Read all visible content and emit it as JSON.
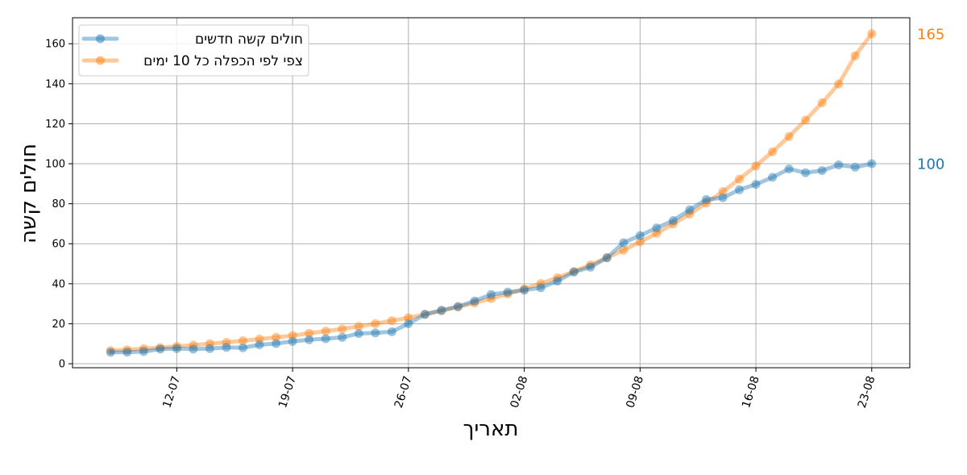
{
  "chart_data": {
    "type": "line",
    "xlabel": "תאריך",
    "ylabel": "חולים קשה",
    "ylim": [
      -2,
      173
    ],
    "yticks": [
      0,
      20,
      40,
      60,
      80,
      100,
      120,
      140,
      160
    ],
    "xticks": [
      "12-07",
      "19-07",
      "26-07",
      "02-08",
      "09-08",
      "16-08",
      "23-08"
    ],
    "x_start": "2020-07-08",
    "x_range_days": [
      -2.3,
      48.3
    ],
    "grid": true,
    "legend_position": "top-left",
    "series": [
      {
        "name": "חולים קשה חדשים",
        "color": "#1f77b4",
        "end_label": "100",
        "values": [
          5.7,
          5.8,
          6.1,
          7.3,
          7.6,
          7.3,
          7.6,
          8.2,
          8.0,
          9.5,
          10.1,
          11.2,
          12.0,
          12.5,
          13.2,
          15.1,
          15.4,
          16.0,
          20.0,
          24.7,
          26.7,
          28.6,
          31.4,
          34.6,
          35.8,
          36.8,
          38.0,
          41.3,
          45.9,
          48.3,
          53.0,
          60.5,
          64.1,
          67.9,
          71.6,
          77.0,
          82.1,
          83.0,
          87.0,
          89.7,
          93.2,
          97.4,
          95.5,
          96.6,
          99.4,
          98.3,
          100.0
        ]
      },
      {
        "name": "צפי לפי הכפלה כל 10 ימים",
        "color": "#ff7f0e",
        "end_label": "165",
        "values": [
          6.6,
          7.0,
          7.5,
          8.1,
          8.7,
          9.3,
          10.0,
          10.7,
          11.5,
          12.3,
          13.2,
          14.1,
          15.2,
          16.3,
          17.4,
          18.7,
          20.0,
          21.5,
          23.0,
          24.7,
          26.5,
          28.4,
          30.4,
          32.6,
          34.9,
          37.4,
          40.1,
          43.0,
          46.1,
          49.4,
          53.0,
          56.8,
          60.9,
          65.2,
          69.9,
          74.9,
          80.3,
          86.1,
          92.3,
          98.9,
          106.0,
          113.6,
          121.8,
          130.5,
          139.9,
          154.0,
          165.0
        ]
      }
    ]
  }
}
